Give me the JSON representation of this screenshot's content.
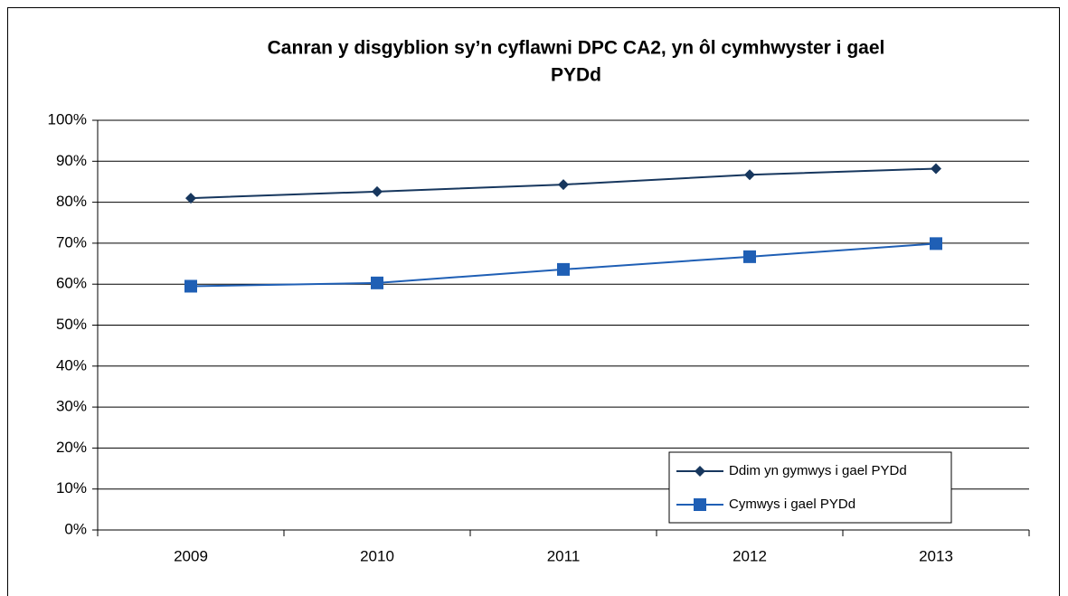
{
  "chart_data": {
    "type": "line",
    "title": [
      "Canran y disgyblion sy’n cyflawni DPC CA2, yn ôl cymhwyster i gael",
      "PYDd"
    ],
    "categories": [
      "2009",
      "2010",
      "2011",
      "2012",
      "2013"
    ],
    "series": [
      {
        "name": "Ddim yn gymwys i gael PYDd",
        "color": "#17375e",
        "marker": "diamond",
        "values": [
          81,
          82.6,
          84.3,
          86.7,
          88.2
        ]
      },
      {
        "name": "Cymwys i gael PYDd",
        "color": "#1f5fb5",
        "marker": "square",
        "values": [
          59.5,
          60.3,
          63.6,
          66.7,
          69.9
        ]
      }
    ],
    "ylim": [
      0,
      100
    ],
    "yticks": [
      {
        "value": 0,
        "label": "0%"
      },
      {
        "value": 10,
        "label": "10%"
      },
      {
        "value": 20,
        "label": "20%"
      },
      {
        "value": 30,
        "label": "30%"
      },
      {
        "value": 40,
        "label": "40%"
      },
      {
        "value": 50,
        "label": "50%"
      },
      {
        "value": 60,
        "label": "60%"
      },
      {
        "value": 70,
        "label": "70%"
      },
      {
        "value": 80,
        "label": "80%"
      },
      {
        "value": 90,
        "label": "90%"
      },
      {
        "value": 100,
        "label": "100%"
      }
    ],
    "grid": true,
    "legend": "lower right"
  }
}
